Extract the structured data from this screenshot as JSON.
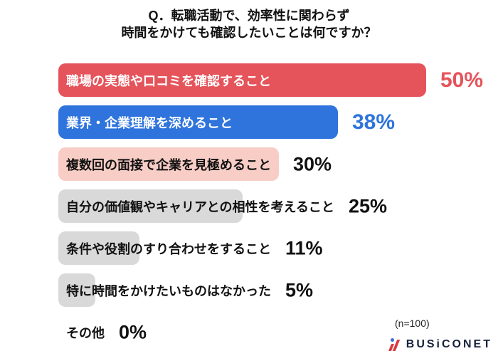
{
  "chart_data": {
    "type": "bar",
    "orientation": "horizontal",
    "title": "Q．転職活動で、効率性に関わらず時間をかけても確認したいことは何ですか？",
    "title_lines": [
      "Q．転職活動で、効率性に関わらず",
      "時間をかけても確認したいことは何ですか？"
    ],
    "xlabel": "",
    "ylabel": "",
    "xlim": [
      0,
      60
    ],
    "unit": "%",
    "grid": false,
    "legend": "none",
    "note": "(n=100)",
    "categories": [
      "職場の実態や口コミを確認すること",
      "業界・企業理解を深めること",
      "複数回の面接で企業を見極めること",
      "自分の価値観やキャリアとの相性を考えること",
      "条件や役割のすり合わせをすること",
      "特に時間をかけたいものはなかった",
      "その他"
    ],
    "values": [
      50,
      38,
      30,
      25,
      11,
      5,
      0
    ],
    "items": [
      {
        "label": "職場の実態や口コミを確認すること",
        "value": 50,
        "value_label": "50%",
        "bar_color": "#E5545B",
        "label_color": "#FFFFFF",
        "value_color": "#E5545B"
      },
      {
        "label": "業界・企業理解を深めること",
        "value": 38,
        "value_label": "38%",
        "bar_color": "#2E74DC",
        "label_color": "#FFFFFF",
        "value_color": "#2E74DC"
      },
      {
        "label": "複数回の面接で企業を見極めること",
        "value": 30,
        "value_label": "30%",
        "bar_color": "#F7CDC5",
        "label_color": "#111111",
        "value_color": "#111111"
      },
      {
        "label": "自分の価値観やキャリアとの相性を考えること",
        "value": 25,
        "value_label": "25%",
        "bar_color": "#D9D9D9",
        "label_color": "#111111",
        "value_color": "#111111"
      },
      {
        "label": "条件や役割のすり合わせをすること",
        "value": 11,
        "value_label": "11%",
        "bar_color": "#D9D9D9",
        "label_color": "#111111",
        "value_color": "#111111"
      },
      {
        "label": "特に時間をかけたいものはなかった",
        "value": 5,
        "value_label": "5%",
        "bar_color": "#D9D9D9",
        "label_color": "#111111",
        "value_color": "#111111"
      },
      {
        "label": "その他",
        "value": 0,
        "value_label": "0%",
        "bar_color": "transparent",
        "label_color": "#111111",
        "value_color": "#111111"
      }
    ]
  },
  "footer": {
    "brand": "BUSiCONET"
  }
}
